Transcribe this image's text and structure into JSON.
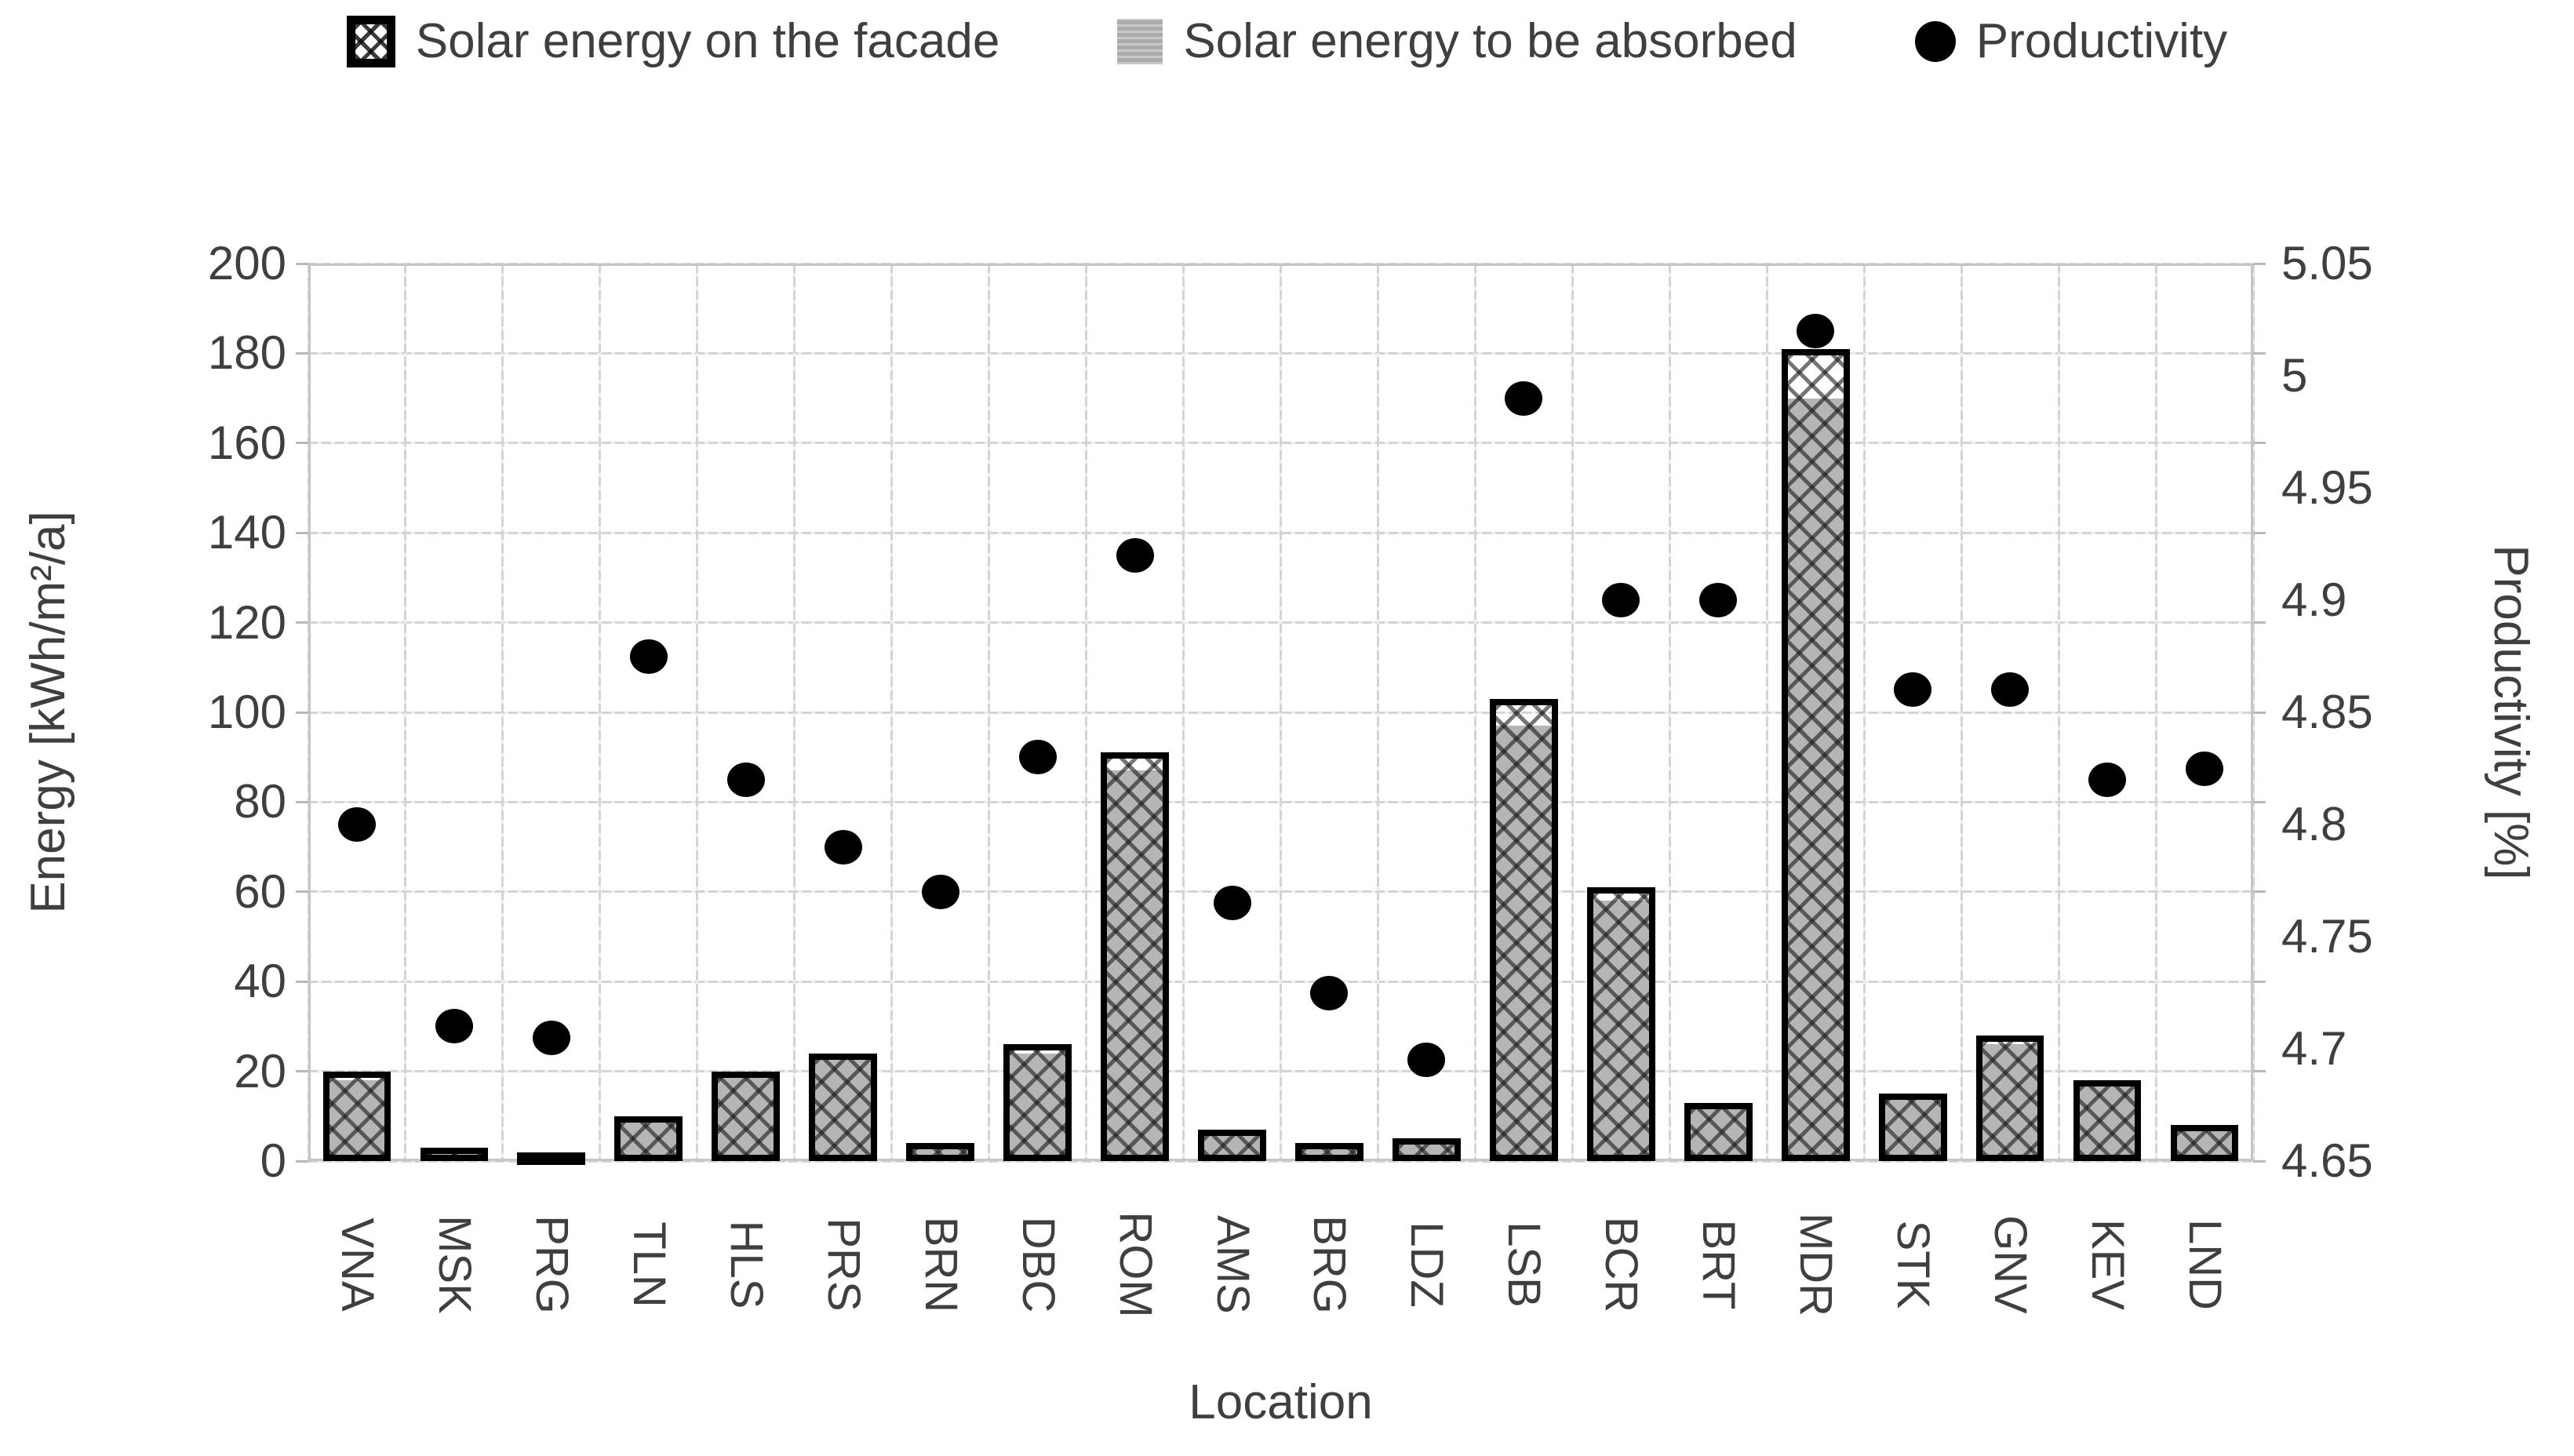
{
  "legend": {
    "items": [
      {
        "label": "Solar energy on the facade",
        "marker": "crosshatch-square"
      },
      {
        "label": "Solar energy to be absorbed",
        "marker": "gray-square"
      },
      {
        "label": "Productivity",
        "marker": "black-circle"
      }
    ]
  },
  "chart_data": {
    "type": "bar",
    "combo": "bar+scatter",
    "grid": true,
    "legend_position": "top",
    "categories": [
      "VNA",
      "MSK",
      "PRG",
      "TLN",
      "HLS",
      "PRS",
      "BRN",
      "DBC",
      "ROM",
      "AMS",
      "BRG",
      "LDZ",
      "LSB",
      "BCR",
      "BRT",
      "MDR",
      "STK",
      "GNV",
      "KEV",
      "LND"
    ],
    "series": [
      {
        "name": "Solar energy on the facade",
        "type": "bar",
        "axis": "left",
        "style": "crosshatch-black-outline",
        "values": [
          20,
          3,
          2,
          10,
          20,
          24,
          4,
          26,
          91,
          7,
          4,
          5,
          103,
          61,
          13,
          181,
          15,
          28,
          18,
          8
        ]
      },
      {
        "name": "Solar energy to be absorbed",
        "type": "bar",
        "axis": "left",
        "style": "solid-gray",
        "values": [
          18,
          2,
          2,
          9,
          19,
          23,
          4,
          24,
          87,
          6,
          3,
          4,
          97,
          58,
          12,
          170,
          14,
          26,
          17,
          7
        ]
      },
      {
        "name": "Productivity",
        "type": "scatter",
        "axis": "right",
        "style": "black-dot",
        "values": [
          4.8,
          4.71,
          4.705,
          4.875,
          4.82,
          4.79,
          4.77,
          4.83,
          4.92,
          4.765,
          4.725,
          4.695,
          4.99,
          4.9,
          4.9,
          5.02,
          4.86,
          4.86,
          4.82,
          4.825
        ]
      }
    ],
    "left_axis": {
      "title": "Energy [kWh/m²/a]",
      "min": 0,
      "max": 200,
      "step": 20,
      "tick_labels": [
        "0",
        "20",
        "40",
        "60",
        "80",
        "100",
        "120",
        "140",
        "160",
        "180",
        "200"
      ]
    },
    "right_axis": {
      "title": "Productivity [%]",
      "min": 4.65,
      "max": 5.05,
      "step": 0.05,
      "tick_labels": [
        "4.65",
        "4.7",
        "4.75",
        "4.8",
        "4.85",
        "4.9",
        "4.95",
        "5",
        "5.05"
      ]
    },
    "x_axis": {
      "title": "Location"
    },
    "colors": {
      "bar_gray": "#b5b5b5",
      "bar_outline": "#000000",
      "dot": "#000000",
      "text": "#3f3f3f",
      "gridline": "#d4d4d4"
    }
  }
}
